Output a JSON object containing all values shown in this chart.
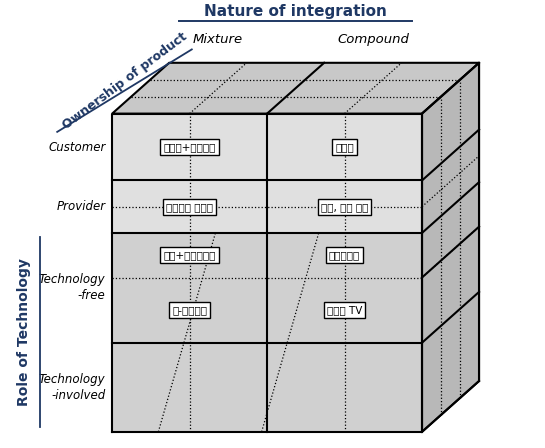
{
  "title_top": "Nature of integration",
  "label_mixture": "Mixture",
  "label_compound": "Compound",
  "label_ownership": "Ownership of product",
  "label_role": "Role of Technology",
  "label_customer": "Customer",
  "label_provider": "Provider",
  "label_tech_free": "Technology\n-free",
  "label_tech_involved": "Technology\n-involved",
  "cells": [
    {
      "text": "조리법+전용용기",
      "row": 0,
      "col": 0
    },
    {
      "text": "컨설팅",
      "row": 0,
      "col": 1
    },
    {
      "text": "카쉐어링 서비스",
      "row": 1,
      "col": 0
    },
    {
      "text": "복사, 정원 관리",
      "row": 1,
      "col": 1
    },
    {
      "text": "교재+인터넷강의",
      "row": 2,
      "col": 0
    },
    {
      "text": "네비게이션",
      "row": 2,
      "col": 1
    },
    {
      "text": "유-헬스케어",
      "row": 3,
      "col": 0
    },
    {
      "text": "인터넷 TV",
      "row": 3,
      "col": 1
    }
  ],
  "bg_color": "#ffffff",
  "face_color_top": "#c8c8c8",
  "face_color_side": "#b8b8b8",
  "face_color_front_top": "#e0e0e0",
  "face_color_front_bot": "#d0d0d0",
  "title_color": "#1f3864",
  "axis_label_color": "#1f3864",
  "text_color": "#000000",
  "lw_main": 1.5,
  "lw_dot": 0.9
}
